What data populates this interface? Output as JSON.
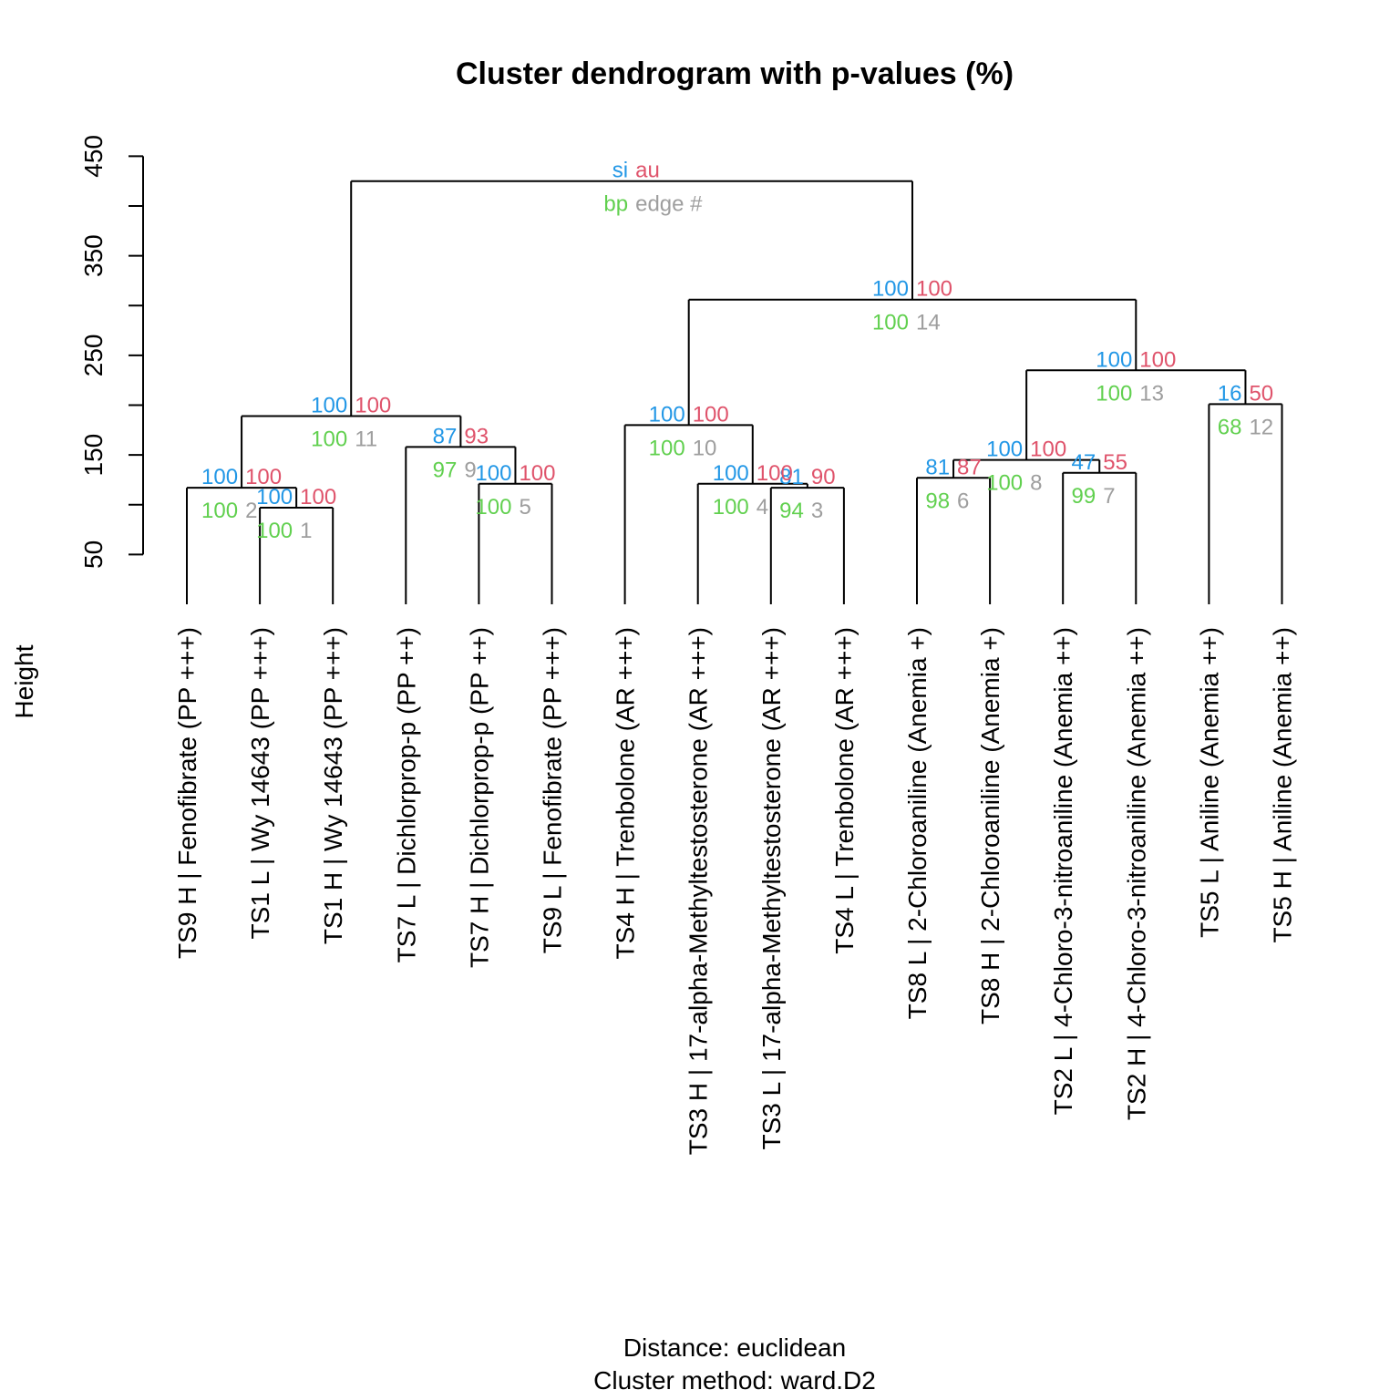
{
  "chart_data": {
    "type": "dendrogram",
    "title": "Cluster dendrogram with p-values (%)",
    "ylabel": "Height",
    "xlabel_lines": [
      "Distance:  euclidean",
      "Cluster method: ward.D2"
    ],
    "ylim": [
      50,
      450
    ],
    "yticks": [
      50,
      150,
      250,
      350,
      450
    ],
    "leaves": [
      "TS9 H | Fenofibrate (PP +++)",
      "TS1 L | Wy 14643 (PP +++)",
      "TS1 H | Wy 14643 (PP +++)",
      "TS7 L | Dichlorprop-p (PP ++)",
      "TS7 H | Dichlorprop-p (PP ++)",
      "TS9 L | Fenofibrate (PP +++)",
      "TS4 H | Trenbolone (AR +++)",
      "TS3 H | 17-alpha-Methyltestosterone (AR +++)",
      "TS3 L | 17-alpha-Methyltestosterone (AR +++)",
      "TS4 L | Trenbolone (AR +++)",
      "TS8 L | 2-Chloroaniline (Anemia +)",
      "TS8 H | 2-Chloroaniline (Anemia +)",
      "TS2 L | 4-Chloro-3-nitroaniline (Anemia ++)",
      "TS2 H | 4-Chloro-3-nitroaniline (Anemia ++)",
      "TS5 L | Aniline (Anemia ++)",
      "TS5 H | Aniline (Anemia ++)"
    ],
    "merges": [
      {
        "edge": "1",
        "left": "L:1",
        "right": "L:2",
        "height": 97,
        "si": "100",
        "au": "100",
        "bp": "100"
      },
      {
        "edge": "2",
        "left": "L:0",
        "right": "E:1",
        "height": 117,
        "si": "100",
        "au": "100",
        "bp": "100"
      },
      {
        "edge": "3",
        "left": "L:8",
        "right": "L:9",
        "height": 117,
        "si": "81",
        "au": "90",
        "bp": "94"
      },
      {
        "edge": "4",
        "left": "L:7",
        "right": "E:3",
        "height": 121,
        "si": "100",
        "au": "100",
        "bp": "100"
      },
      {
        "edge": "5",
        "left": "L:4",
        "right": "L:5",
        "height": 121,
        "si": "100",
        "au": "100",
        "bp": "100"
      },
      {
        "edge": "6",
        "left": "L:10",
        "right": "L:11",
        "height": 127,
        "si": "81",
        "au": "87",
        "bp": "98"
      },
      {
        "edge": "7",
        "left": "L:12",
        "right": "L:13",
        "height": 132,
        "si": "47",
        "au": "55",
        "bp": "99"
      },
      {
        "edge": "8",
        "left": "E:6",
        "right": "E:7",
        "height": 145,
        "si": "100",
        "au": "100",
        "bp": "100"
      },
      {
        "edge": "9",
        "left": "L:3",
        "right": "E:5",
        "height": 158,
        "si": "87",
        "au": "93",
        "bp": "97"
      },
      {
        "edge": "10",
        "left": "L:6",
        "right": "E:4",
        "height": 180,
        "si": "100",
        "au": "100",
        "bp": "100"
      },
      {
        "edge": "11",
        "left": "E:2",
        "right": "E:9",
        "height": 189,
        "si": "100",
        "au": "100",
        "bp": "100"
      },
      {
        "edge": "12",
        "left": "L:14",
        "right": "L:15",
        "height": 201,
        "si": "16",
        "au": "50",
        "bp": "68"
      },
      {
        "edge": "13",
        "left": "E:8",
        "right": "E:12",
        "height": 235,
        "si": "100",
        "au": "100",
        "bp": "100"
      },
      {
        "edge": "14",
        "left": "E:10",
        "right": "E:13",
        "height": 306,
        "si": "100",
        "au": "100",
        "bp": "100"
      },
      {
        "edge": "",
        "left": "E:11",
        "right": "E:14",
        "height": 425,
        "si": "si",
        "au": "au",
        "bp": "bp",
        "edge_label": "edge #"
      }
    ],
    "colors": {
      "si": "#2297e6",
      "au": "#df536b",
      "bp": "#61d04f",
      "edge": "#9e9e9e"
    }
  }
}
